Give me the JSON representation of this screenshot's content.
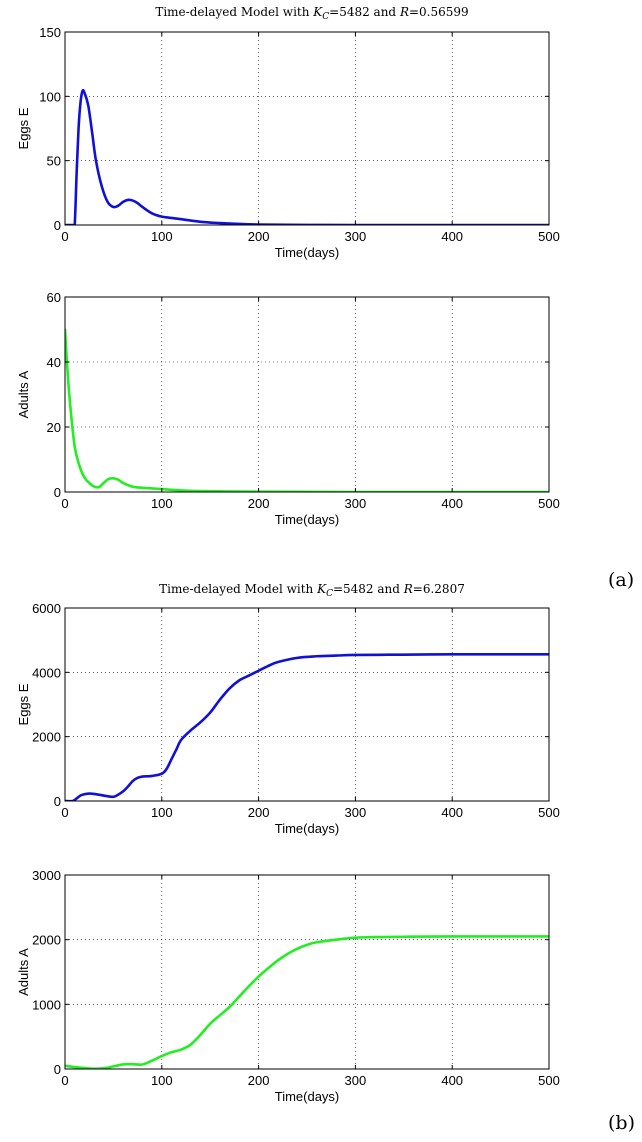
{
  "chart_data": [
    {
      "type": "line",
      "title": {
        "prefix": "Time-delayed Model with ",
        "k_symbol": "K",
        "k_sub": "C",
        "k_value": "=5482 and ",
        "r_symbol": "R",
        "r_value": "=0.56599"
      },
      "xlabel": "Time(days)",
      "ylabel": "Eggs E",
      "xlim": [
        0,
        500
      ],
      "ylim": [
        0,
        150
      ],
      "xticks": [
        0,
        100,
        200,
        300,
        400,
        500
      ],
      "yticks": [
        0,
        50,
        100,
        150
      ],
      "grid": true,
      "color": "#1010d8",
      "series": [
        {
          "x": [
            0,
            8,
            10,
            12,
            14,
            16,
            18,
            20,
            24,
            28,
            32,
            38,
            44,
            50,
            55,
            60,
            65,
            70,
            75,
            80,
            90,
            100,
            110,
            120,
            140,
            160,
            180,
            200,
            250,
            300,
            400,
            500
          ],
          "values": [
            0,
            0,
            0,
            40,
            75,
            95,
            104,
            103,
            93,
            72,
            50,
            30,
            18,
            14,
            15,
            18,
            19.5,
            19,
            17,
            14,
            9,
            6.5,
            5.5,
            4.5,
            2.5,
            1.5,
            0.8,
            0.4,
            0.1,
            0,
            0,
            0
          ]
        }
      ]
    },
    {
      "type": "line",
      "xlabel": "Time(days)",
      "ylabel": "Adults A",
      "xlim": [
        0,
        500
      ],
      "ylim": [
        0,
        60
      ],
      "xticks": [
        0,
        100,
        200,
        300,
        400,
        500
      ],
      "yticks": [
        0,
        20,
        40,
        60
      ],
      "grid": true,
      "color": "#22ee22",
      "series": [
        {
          "x": [
            0,
            2,
            5,
            10,
            15,
            20,
            25,
            30,
            35,
            40,
            45,
            50,
            55,
            60,
            70,
            80,
            90,
            100,
            120,
            140,
            160,
            200,
            300,
            500
          ],
          "values": [
            50,
            40,
            28,
            14,
            8,
            4.5,
            2.8,
            1.7,
            1.5,
            2.8,
            4,
            4.2,
            3.8,
            2.8,
            1.6,
            1.3,
            1.1,
            0.9,
            0.5,
            0.3,
            0.2,
            0.1,
            0,
            0
          ]
        }
      ]
    },
    {
      "type": "line",
      "title": {
        "prefix": "Time-delayed Model with ",
        "k_symbol": "K",
        "k_sub": "C",
        "k_value": "=5482 and ",
        "r_symbol": "R",
        "r_value": "=6.2807"
      },
      "xlabel": "Time(days)",
      "ylabel": "Eggs E",
      "xlim": [
        0,
        500
      ],
      "ylim": [
        0,
        6000
      ],
      "xticks": [
        0,
        100,
        200,
        300,
        400,
        500
      ],
      "yticks": [
        0,
        2000,
        4000,
        6000
      ],
      "grid": true,
      "color": "#1010d8",
      "series": [
        {
          "x": [
            0,
            8,
            12,
            16,
            20,
            25,
            30,
            40,
            50,
            55,
            60,
            65,
            70,
            75,
            80,
            90,
            100,
            105,
            110,
            115,
            120,
            130,
            140,
            150,
            160,
            170,
            180,
            190,
            200,
            210,
            220,
            240,
            260,
            280,
            300,
            350,
            400,
            450,
            500
          ],
          "values": [
            0,
            0,
            80,
            170,
            210,
            230,
            220,
            170,
            130,
            200,
            300,
            450,
            620,
            720,
            760,
            780,
            850,
            1000,
            1300,
            1600,
            1900,
            2200,
            2450,
            2750,
            3150,
            3500,
            3750,
            3900,
            4050,
            4200,
            4320,
            4450,
            4500,
            4520,
            4540,
            4550,
            4560,
            4560,
            4560
          ]
        }
      ]
    },
    {
      "type": "line",
      "xlabel": "Time(days)",
      "ylabel": "Adults A",
      "xlim": [
        0,
        500
      ],
      "ylim": [
        0,
        3000
      ],
      "xticks": [
        0,
        100,
        200,
        300,
        400,
        500
      ],
      "yticks": [
        0,
        1000,
        2000,
        3000
      ],
      "grid": true,
      "color": "#22ee22",
      "series": [
        {
          "x": [
            0,
            10,
            20,
            30,
            40,
            50,
            60,
            70,
            80,
            90,
            100,
            110,
            120,
            130,
            140,
            150,
            160,
            170,
            180,
            190,
            200,
            210,
            220,
            230,
            240,
            250,
            260,
            280,
            300,
            320,
            350,
            400,
            500
          ],
          "values": [
            50,
            30,
            15,
            5,
            10,
            40,
            70,
            75,
            70,
            130,
            200,
            260,
            300,
            380,
            530,
            700,
            830,
            960,
            1120,
            1280,
            1430,
            1560,
            1680,
            1780,
            1860,
            1920,
            1960,
            2000,
            2030,
            2040,
            2045,
            2050,
            2050
          ]
        }
      ]
    }
  ],
  "panel_labels": [
    "(a)",
    "(b)"
  ]
}
